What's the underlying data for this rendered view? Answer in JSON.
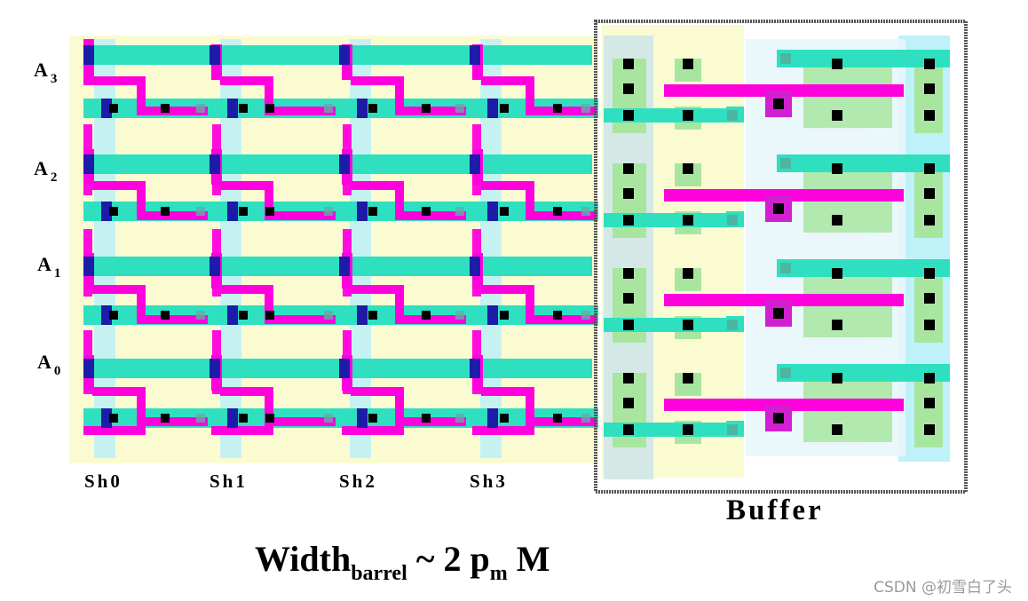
{
  "row_labels": [
    {
      "base": "A",
      "sub": "3"
    },
    {
      "base": "A",
      "sub": "2"
    },
    {
      "base": "A",
      "sub": "1"
    },
    {
      "base": "A",
      "sub": "0"
    }
  ],
  "column_labels": [
    "Sh0",
    "Sh1",
    "Sh2",
    "Sh3"
  ],
  "buffer_label": "Buffer",
  "formula": {
    "main": "Width",
    "sub1": "barrel",
    "middle": " ~ 2 p",
    "sub2": "m",
    "tail": " M"
  },
  "watermark": "CSDN @初雪白了头",
  "colors": {
    "well": "#fbfbd2",
    "metal1": "#2ee0c0",
    "poly": "#ff00dd",
    "via": "#1c1ca8",
    "contact": "#000000",
    "diffusion": "#a8e6a0",
    "n_region": "#b8f0f8",
    "buffer_border": "#555555"
  }
}
